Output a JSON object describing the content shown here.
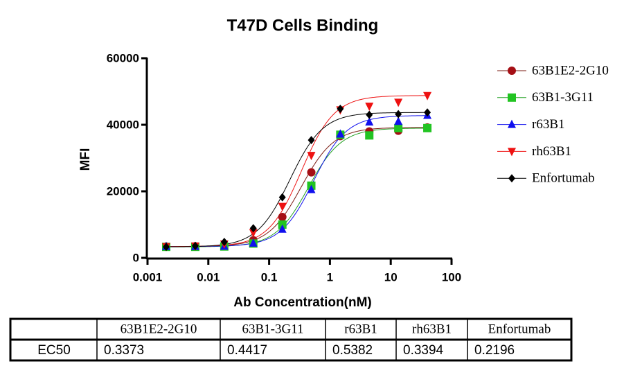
{
  "chart_data": {
    "type": "scatter",
    "title": "T47D Cells Binding",
    "xlabel": "Ab Concentration(nM)",
    "ylabel": "MFI",
    "log_x": true,
    "x": [
      0.00203,
      0.0061,
      0.0183,
      0.0549,
      0.165,
      0.494,
      1.48,
      4.44,
      13.33,
      40
    ],
    "xlim": [
      0.001,
      100
    ],
    "xticks": [
      0.001,
      0.01,
      0.1,
      1,
      10,
      100
    ],
    "ylim": [
      0,
      60000
    ],
    "yticks": [
      0,
      20000,
      40000,
      60000
    ],
    "series": [
      {
        "name": "63B1E2-2G10",
        "color": "#a50f15",
        "line_color": "#7a1a10",
        "marker": "circle",
        "values": [
          3400,
          3500,
          3800,
          5300,
          12300,
          25700,
          36600,
          38000,
          38200,
          39200
        ]
      },
      {
        "name": "63B1-3G11",
        "color": "#22c422",
        "line_color": "#22a022",
        "marker": "square",
        "values": [
          3300,
          3300,
          3400,
          4300,
          10000,
          21700,
          37000,
          36800,
          39000,
          39000
        ]
      },
      {
        "name": "r63B1",
        "color": "#1010ee",
        "line_color": "#1010ee",
        "marker": "triangle-up",
        "values": [
          3400,
          3400,
          3500,
          4400,
          8600,
          20500,
          37200,
          40800,
          41000,
          42800
        ]
      },
      {
        "name": "rh63B1",
        "color": "#ee1111",
        "line_color": "#ee1111",
        "marker": "triangle-down",
        "values": [
          3400,
          3600,
          4200,
          7600,
          15500,
          30800,
          44500,
          45600,
          46800,
          48800
        ]
      },
      {
        "name": "Enfortumab",
        "color": "#000000",
        "line_color": "#000000",
        "marker": "diamond",
        "values": [
          3300,
          3600,
          4800,
          8900,
          18200,
          35400,
          44800,
          43000,
          43200,
          43700
        ]
      }
    ]
  },
  "table": {
    "row_label": "EC50",
    "columns": [
      "63B1E2-2G10",
      "63B1-3G11",
      "r63B1",
      "rh63B1",
      "Enfortumab"
    ],
    "values": [
      0.3373,
      0.4417,
      0.5382,
      0.3394,
      0.2196
    ]
  }
}
